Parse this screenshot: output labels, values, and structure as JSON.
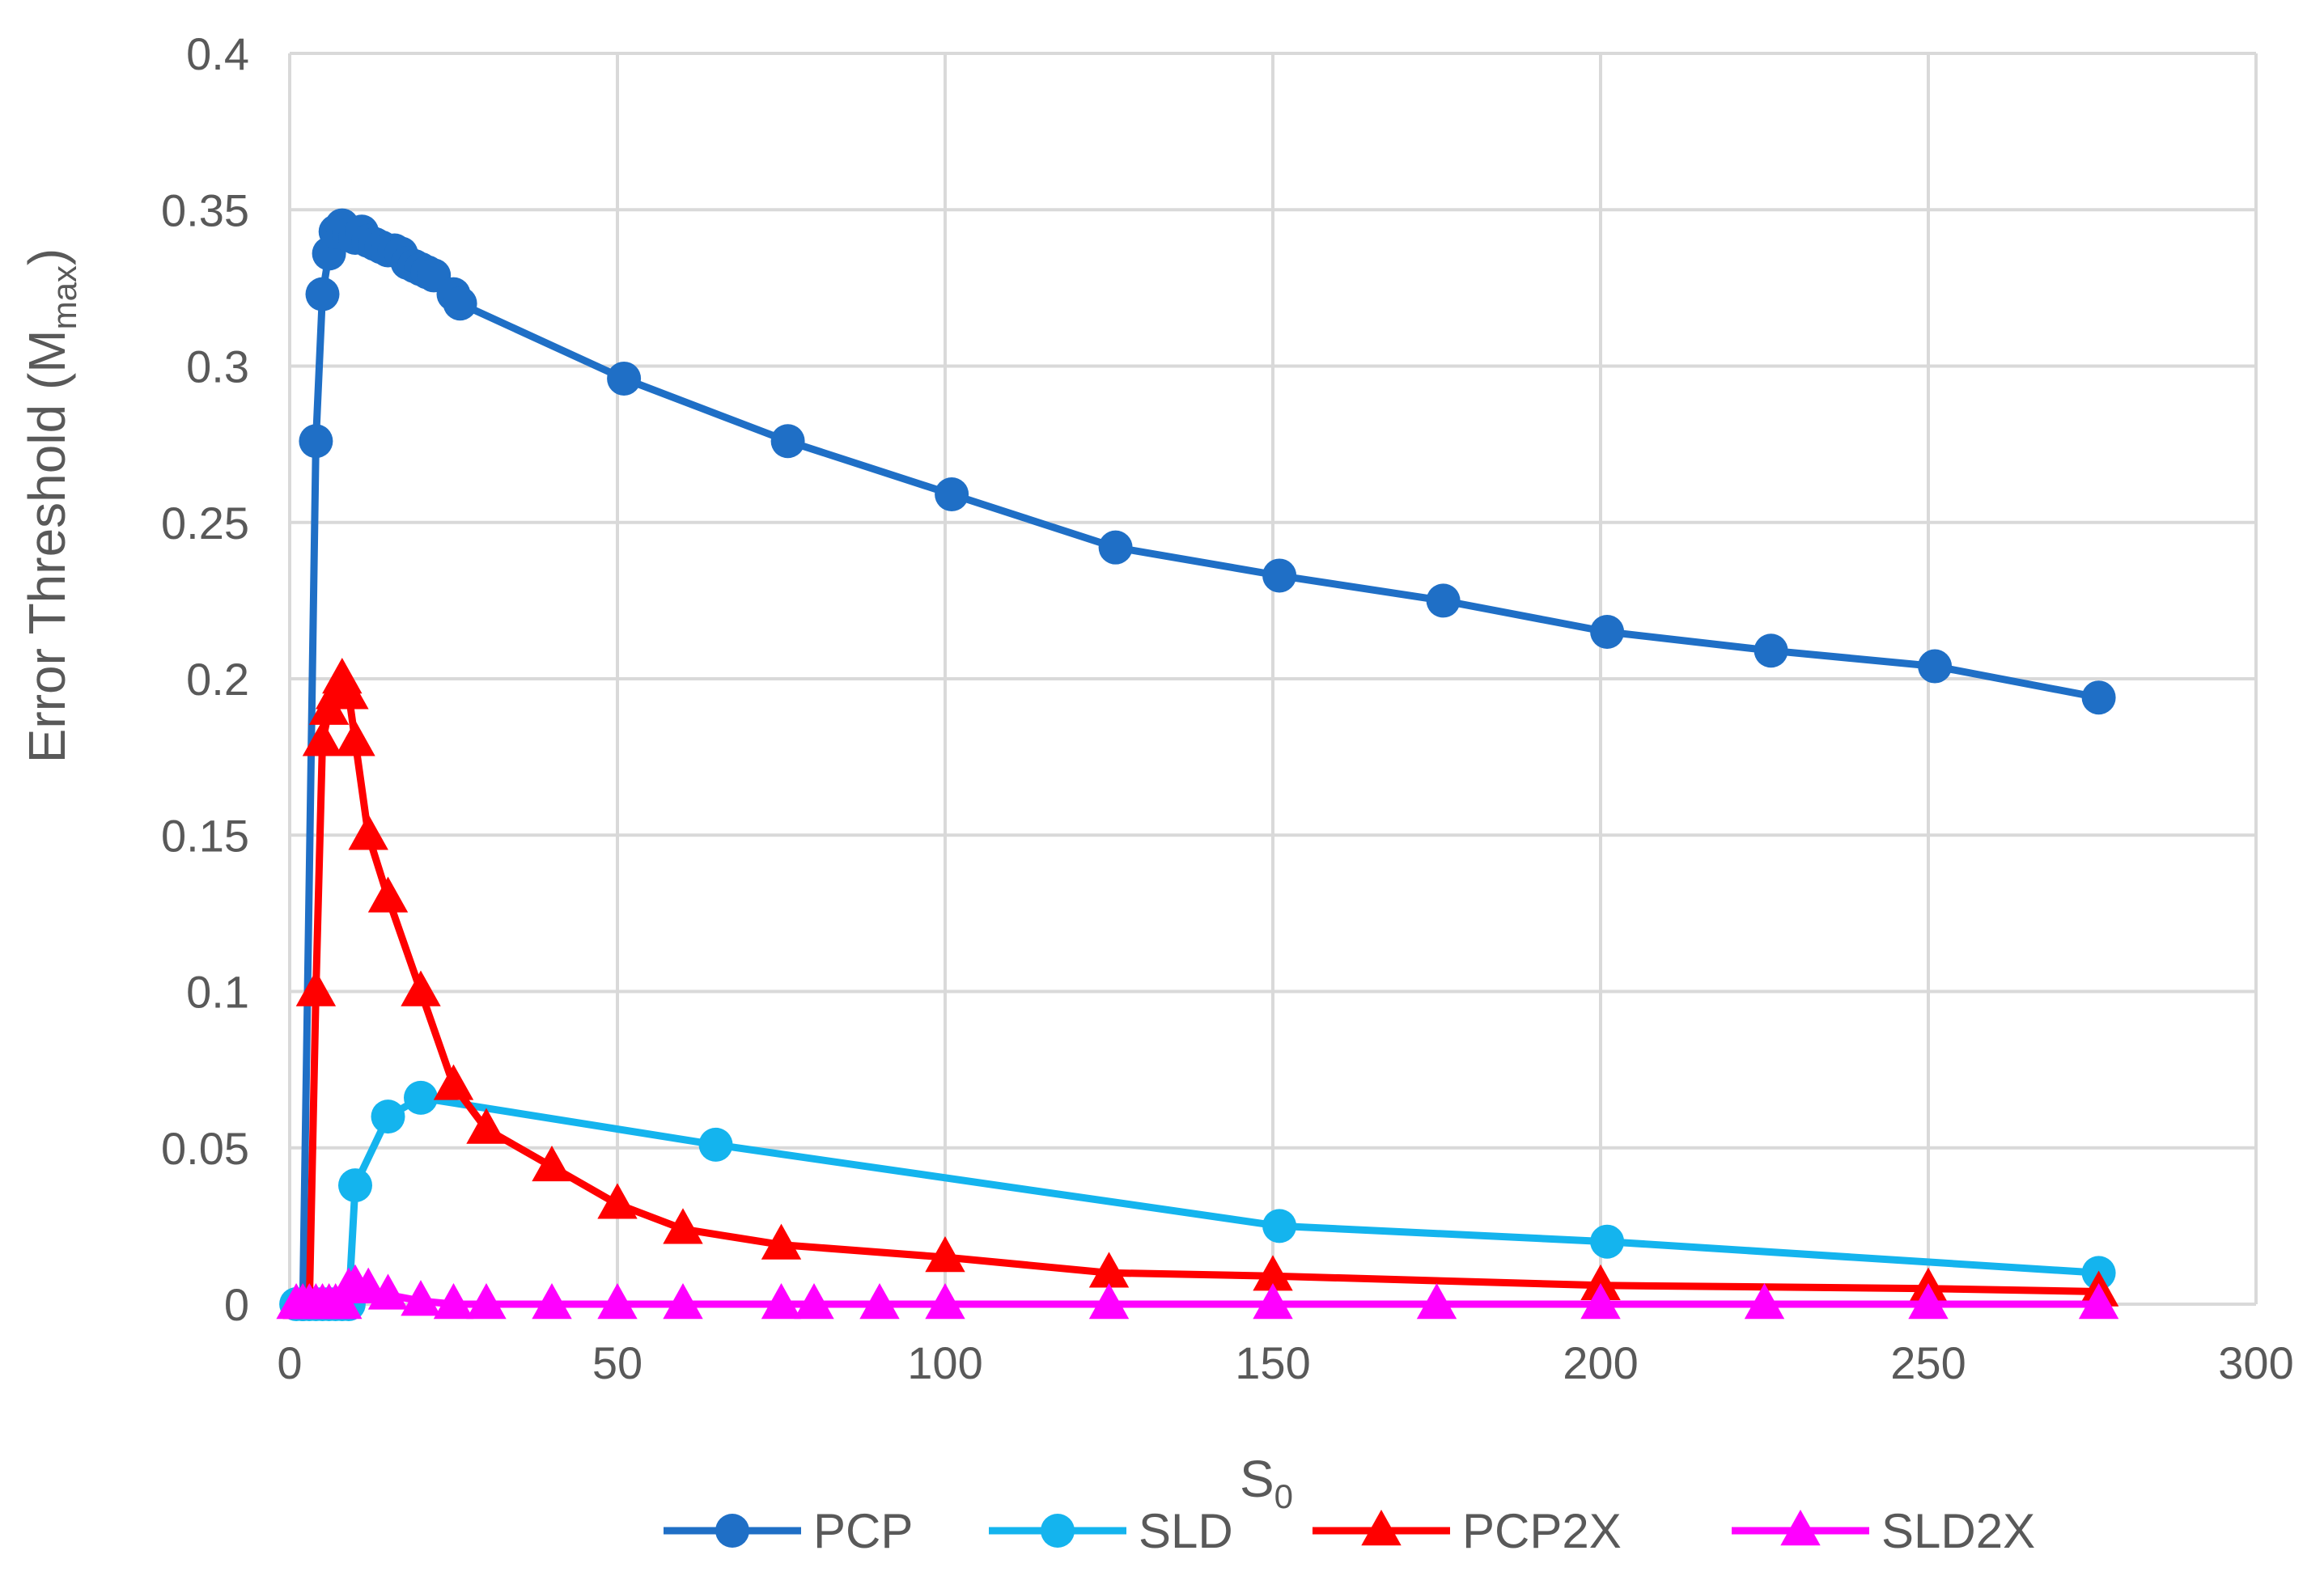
{
  "chart_data": {
    "type": "line",
    "xlabel": {
      "main": "S",
      "sub": "0"
    },
    "ylabel": {
      "main": "Error Threshold (M",
      "sub": "max",
      "tail": ")"
    },
    "xlim": [
      0,
      300
    ],
    "ylim": [
      0,
      0.4
    ],
    "x_ticks": [
      "0",
      "50",
      "100",
      "150",
      "200",
      "250",
      "300"
    ],
    "y_ticks": [
      "0",
      "0.05",
      "0.1",
      "0.15",
      "0.2",
      "0.25",
      "0.3",
      "0.35",
      "0.4"
    ],
    "grid": true,
    "legend_position": "bottom",
    "series": [
      {
        "name": "PCP",
        "color": "#1f6fc6",
        "marker": "circle",
        "x": [
          2,
          4,
          5,
          6,
          7,
          8,
          9,
          10,
          11,
          12,
          13,
          14,
          15,
          16,
          17,
          18,
          19,
          20,
          21,
          22,
          25,
          26,
          51,
          76,
          101,
          126,
          151,
          176,
          201,
          226,
          251,
          276
        ],
        "y": [
          0,
          0.276,
          0.323,
          0.336,
          0.343,
          0.345,
          0.342,
          0.341,
          0.343,
          0.34,
          0.339,
          0.338,
          0.337,
          0.337,
          0.336,
          0.333,
          0.332,
          0.331,
          0.33,
          0.329,
          0.323,
          0.32,
          0.296,
          0.276,
          0.259,
          0.242,
          0.233,
          0.225,
          0.215,
          0.209,
          0.204,
          0.194
        ]
      },
      {
        "name": "SLD",
        "color": "#14b4ee",
        "marker": "circle",
        "x": [
          1,
          2,
          3,
          4,
          5,
          6,
          7,
          8,
          9,
          10,
          15,
          20,
          65,
          151,
          201,
          276
        ],
        "y": [
          0,
          0,
          0,
          0,
          0,
          0,
          0,
          0,
          0,
          0.038,
          0.06,
          0.066,
          0.051,
          0.025,
          0.02,
          0.01
        ]
      },
      {
        "name": "PCP2X",
        "color": "#ff0000",
        "marker": "triangle",
        "x": [
          2,
          3,
          4,
          5,
          6,
          7,
          8,
          9,
          10,
          12,
          15,
          20,
          25,
          30,
          40,
          50,
          60,
          75,
          100,
          125,
          150,
          200,
          250,
          276
        ],
        "y": [
          0,
          0,
          0.1,
          0.18,
          0.19,
          0.195,
          0.2,
          0.195,
          0.18,
          0.15,
          0.13,
          0.1,
          0.07,
          0.056,
          0.044,
          0.032,
          0.024,
          0.019,
          0.015,
          0.01,
          0.009,
          0.006,
          0.005,
          0.004
        ]
      },
      {
        "name": "SLD2X",
        "color": "#ff00ff",
        "marker": "triangle",
        "x": [
          1,
          2,
          3,
          4,
          5,
          6,
          7,
          8,
          9,
          10,
          12,
          15,
          20,
          25,
          30,
          40,
          50,
          60,
          75,
          80,
          90,
          100,
          125,
          150,
          175,
          200,
          225,
          250,
          276
        ],
        "y": [
          0,
          0,
          0,
          0,
          0,
          0,
          0,
          0,
          0.005,
          0.006,
          0.005,
          0.003,
          0.001,
          0,
          0,
          0,
          0,
          0,
          0,
          0,
          0,
          0,
          0,
          0,
          0,
          0,
          0,
          0,
          0
        ]
      }
    ]
  }
}
